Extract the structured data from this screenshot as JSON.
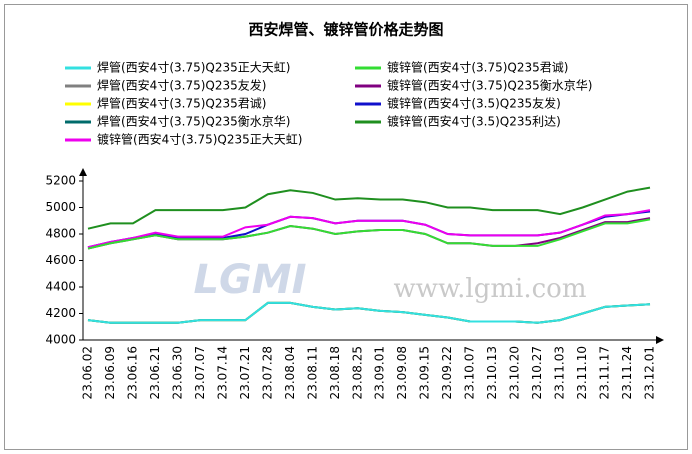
{
  "chart_data": {
    "type": "line",
    "title": "西安焊管、镀锌管价格走势图",
    "watermark": "www.lgmi.com",
    "logo": "LGMI",
    "categories": [
      "23.06.02",
      "23.06.09",
      "23.06.16",
      "23.06.21",
      "23.06.30",
      "23.07.07",
      "23.07.14",
      "23.07.21",
      "23.07.28",
      "23.08.04",
      "23.08.11",
      "23.08.18",
      "23.08.25",
      "23.09.01",
      "23.09.08",
      "23.09.15",
      "23.09.22",
      "23.10.07",
      "23.10.13",
      "23.10.20",
      "23.10.27",
      "23.11.03",
      "23.11.10",
      "23.11.17",
      "23.11.24",
      "23.12.01"
    ],
    "ylim": [
      4000,
      5200
    ],
    "yticks": [
      4000,
      4200,
      4400,
      4600,
      4800,
      5000,
      5200
    ],
    "series": [
      {
        "name": "焊管(西安4寸(3.75)Q235友发)",
        "color": "#808080",
        "values": [
          4150,
          4130,
          4130,
          4130,
          4130,
          4150,
          4150,
          4150,
          4280,
          4280,
          4250,
          4230,
          4240,
          4220,
          4210,
          4190,
          4170,
          4140,
          4140,
          4140,
          4130,
          4150,
          4200,
          4250,
          4260,
          4270
        ]
      },
      {
        "name": "焊管(西安4寸(3.75)Q235君诚)",
        "color": "#ffff00",
        "values": [
          4150,
          4130,
          4130,
          4130,
          4130,
          4150,
          4150,
          4150,
          4280,
          4280,
          4250,
          4230,
          4240,
          4220,
          4210,
          4190,
          4170,
          4140,
          4140,
          4140,
          4130,
          4150,
          4200,
          4250,
          4260,
          4270
        ]
      },
      {
        "name": "焊管(西安4寸(3.75)Q235衡水京华)",
        "color": "#006b6b",
        "values": [
          4150,
          4130,
          4130,
          4130,
          4130,
          4150,
          4150,
          4150,
          4280,
          4280,
          4250,
          4230,
          4240,
          4220,
          4210,
          4190,
          4170,
          4140,
          4140,
          4140,
          4130,
          4150,
          4200,
          4250,
          4260,
          4270
        ]
      },
      {
        "name": "焊管(西安4寸(3.75)Q235正大天虹)",
        "color": "#33e0e0",
        "values": [
          4150,
          4130,
          4130,
          4130,
          4130,
          4150,
          4150,
          4150,
          4280,
          4280,
          4250,
          4230,
          4240,
          4220,
          4210,
          4190,
          4170,
          4140,
          4140,
          4140,
          4130,
          4150,
          4200,
          4250,
          4260,
          4270
        ]
      },
      {
        "name": "镀锌管(西安4寸(3.5)Q235利达)",
        "color": "#1f8f1f",
        "values": [
          4840,
          4880,
          4880,
          4980,
          4980,
          4980,
          4980,
          5000,
          5100,
          5130,
          5110,
          5060,
          5070,
          5060,
          5060,
          5040,
          5000,
          5000,
          4980,
          4980,
          4980,
          4950,
          5000,
          5060,
          5120,
          5150
        ]
      },
      {
        "name": "镀锌管(西安4寸(3.5)Q235友发)",
        "color": "#1010cc",
        "values": [
          4700,
          4740,
          4770,
          4800,
          4770,
          4770,
          4770,
          4800,
          4870,
          4930,
          4920,
          4880,
          4900,
          4900,
          4900,
          4870,
          4800,
          4790,
          4790,
          4790,
          4790,
          4810,
          4870,
          4930,
          4950,
          4970
        ]
      },
      {
        "name": "镀锌管(西安4寸(3.75)Q235正大天虹)",
        "color": "#ee00ee",
        "values": [
          4700,
          4740,
          4770,
          4810,
          4780,
          4780,
          4780,
          4850,
          4870,
          4930,
          4920,
          4880,
          4900,
          4900,
          4900,
          4870,
          4800,
          4790,
          4790,
          4790,
          4790,
          4810,
          4870,
          4940,
          4950,
          4980
        ]
      },
      {
        "name": "镀锌管(西安4寸(3.75)Q235衡水京华)",
        "color": "#800080",
        "values": [
          4690,
          4730,
          4760,
          4790,
          4760,
          4760,
          4760,
          4780,
          4810,
          4860,
          4840,
          4800,
          4820,
          4830,
          4830,
          4800,
          4730,
          4730,
          4710,
          4710,
          4730,
          4770,
          4830,
          4890,
          4890,
          4920
        ]
      },
      {
        "name": "镀锌管(西安4寸(3.75)Q235君诚)",
        "color": "#33dd33",
        "values": [
          4690,
          4730,
          4760,
          4790,
          4760,
          4760,
          4760,
          4780,
          4810,
          4860,
          4840,
          4800,
          4820,
          4830,
          4830,
          4800,
          4730,
          4730,
          4710,
          4710,
          4710,
          4760,
          4820,
          4880,
          4880,
          4910
        ]
      }
    ]
  }
}
